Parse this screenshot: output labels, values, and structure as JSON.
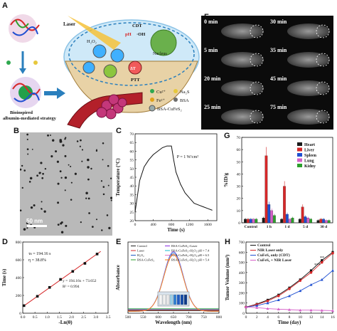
{
  "figure": {
    "panel_labels": [
      "A",
      "B",
      "C",
      "D",
      "E",
      "F",
      "G",
      "H"
    ]
  },
  "panel_a": {
    "strategy_label_1": "Bioinspired",
    "strategy_label_2": "albumin-mediated strategy",
    "labels": {
      "laser": "Laser",
      "cdt": "CDT",
      "ph": "pH",
      "oh": "·OH",
      "h2o2": "H₂O₂",
      "nucleus": "Nucleus",
      "delta_t": "ΔT",
      "ptt": "PTT"
    },
    "legend": [
      {
        "symbol": "cu-dot",
        "label": "Cu²⁺",
        "color": "#2fa84f"
      },
      {
        "symbol": "fe-dot",
        "label": "Fe²⁺",
        "color": "#e0a21a"
      },
      {
        "symbol": "na2s-dot",
        "label": "Na₂S",
        "color": "#e7c83c"
      },
      {
        "symbol": "bsa-dot",
        "label": "BSA",
        "color": "#6d6d6d"
      },
      {
        "symbol": "np-icon",
        "label": "BSA-CuFeS₂",
        "color": "#555555"
      }
    ]
  },
  "panel_b": {
    "scale_bar": "50 nm"
  },
  "panel_f": {
    "time_labels": [
      "0 min",
      "30 min",
      "5 min",
      "35 min",
      "20 min",
      "45 min",
      "25 min",
      "75 min"
    ]
  },
  "chart_data": [
    {
      "panel": "C",
      "type": "line",
      "xlabel": "Time (s)",
      "ylabel": "Temperature (°C)",
      "annotation": "P = 1 W/cm²",
      "xlim": [
        0,
        1800
      ],
      "ylim": [
        20,
        70
      ],
      "xticks": [
        0,
        400,
        800,
        1200,
        1600
      ],
      "yticks": [
        20,
        25,
        30,
        35,
        40,
        45,
        50,
        55,
        60,
        65,
        70
      ],
      "x": [
        0,
        100,
        200,
        300,
        400,
        500,
        600,
        700,
        800,
        850,
        900,
        1000,
        1100,
        1200,
        1300,
        1400,
        1500,
        1600,
        1700
      ],
      "y": [
        25,
        43,
        51,
        55,
        58,
        60,
        62,
        63,
        63,
        55,
        48,
        41,
        36,
        33,
        30,
        29,
        28,
        27,
        26
      ]
    },
    {
      "panel": "D",
      "type": "scatter",
      "xlabel": "-Ln(θ)",
      "ylabel": "Time (s)",
      "xlim": [
        0.0,
        3.5
      ],
      "ylim": [
        0,
        800
      ],
      "xticks": [
        0.0,
        0.5,
        1.0,
        1.5,
        2.0,
        2.5,
        3.0,
        3.5
      ],
      "yticks": [
        0,
        200,
        400,
        600,
        800
      ],
      "annotations": [
        "τs = 194.16 s",
        "η = 38.8%",
        "y = 194.16x + 73.652",
        "R² = 0.994"
      ],
      "x": [
        0.05,
        0.6,
        1.1,
        1.55,
        2.05,
        2.55,
        3.05
      ],
      "y": [
        85,
        190,
        290,
        380,
        470,
        560,
        665
      ],
      "fit": {
        "slope": 194.16,
        "intercept": 73.652
      }
    },
    {
      "panel": "E",
      "type": "line",
      "xlabel": "Wavelength (nm)",
      "ylabel": "Absorbance",
      "xlim": [
        500,
        800
      ],
      "xticks": [
        500,
        550,
        600,
        650,
        700,
        750,
        800
      ],
      "legend": [
        {
          "name": "Control",
          "color": "#222222"
        },
        {
          "name": "Laser",
          "color": "#d62728"
        },
        {
          "name": "H₂O₂",
          "color": "#1f5bc4"
        },
        {
          "name": "BSA-CuFeS₂",
          "color": "#2ca02c"
        },
        {
          "name": "BSA-CuFeS₂+Laser",
          "color": "#8a2be2"
        },
        {
          "name": "BSA-CuFeS₂+H₂O₂ pH = 7.4",
          "color": "#17becf"
        },
        {
          "name": "BSA-CuFeS₂+H₂O₂ pH = 6.5",
          "color": "#e377c2"
        },
        {
          "name": "BSA-CuFeS₂+H₂O₂ pH = 5.4",
          "color": "#ff7f0e"
        }
      ],
      "series_shape": {
        "peak_x": 650,
        "peak_height": 4.7,
        "width": 45
      }
    },
    {
      "panel": "G",
      "type": "bar",
      "ylabel": "%ID/g",
      "ylim": [
        0,
        70
      ],
      "yticks": [
        0,
        10,
        20,
        30,
        40,
        50,
        60,
        70
      ],
      "categories": [
        "Control",
        "1 h",
        "1 d",
        "5 d",
        "30 d"
      ],
      "series": [
        {
          "name": "Heart",
          "color": "#1a1a1a",
          "values": [
            3,
            4,
            3,
            3,
            2
          ]
        },
        {
          "name": "Liver",
          "color": "#d62728",
          "values": [
            3,
            55,
            30,
            13,
            3
          ]
        },
        {
          "name": "Spleen",
          "color": "#1f4fd1",
          "values": [
            3,
            15,
            7,
            5,
            3
          ]
        },
        {
          "name": "Lung",
          "color": "#d55fc8",
          "values": [
            3,
            10,
            3,
            4,
            2
          ]
        },
        {
          "name": "Kidny",
          "color": "#2ca02c",
          "values": [
            3,
            6,
            4,
            3,
            2
          ]
        }
      ]
    },
    {
      "panel": "H",
      "type": "line",
      "xlabel": "Time (day)",
      "ylabel": "Tumor Volume (mm³)",
      "xlim": [
        0,
        16
      ],
      "ylim": [
        0,
        700
      ],
      "xticks": [
        0,
        2,
        4,
        6,
        8,
        10,
        12,
        14,
        16
      ],
      "yticks": [
        0,
        100,
        200,
        300,
        400,
        500,
        600,
        700
      ],
      "x": [
        0,
        2,
        4,
        6,
        8,
        10,
        12,
        14,
        16
      ],
      "series": [
        {
          "name": "Control",
          "color": "#111111",
          "values": [
            60,
            90,
            130,
            180,
            250,
            330,
            420,
            520,
            600
          ]
        },
        {
          "name": "NIR Laser only",
          "color": "#d62728",
          "values": [
            60,
            85,
            120,
            170,
            240,
            320,
            400,
            500,
            590
          ]
        },
        {
          "name": "CuFeS₂ only (CDT)",
          "color": "#1f4fd1",
          "values": [
            60,
            75,
            100,
            130,
            170,
            220,
            280,
            330,
            420
          ]
        },
        {
          "name": "CuFeS₂ + NIR Laser",
          "color": "#d55fc8",
          "values": [
            60,
            55,
            45,
            40,
            35,
            30,
            30,
            28,
            25
          ]
        }
      ],
      "significance": [
        "**",
        "***"
      ]
    }
  ]
}
